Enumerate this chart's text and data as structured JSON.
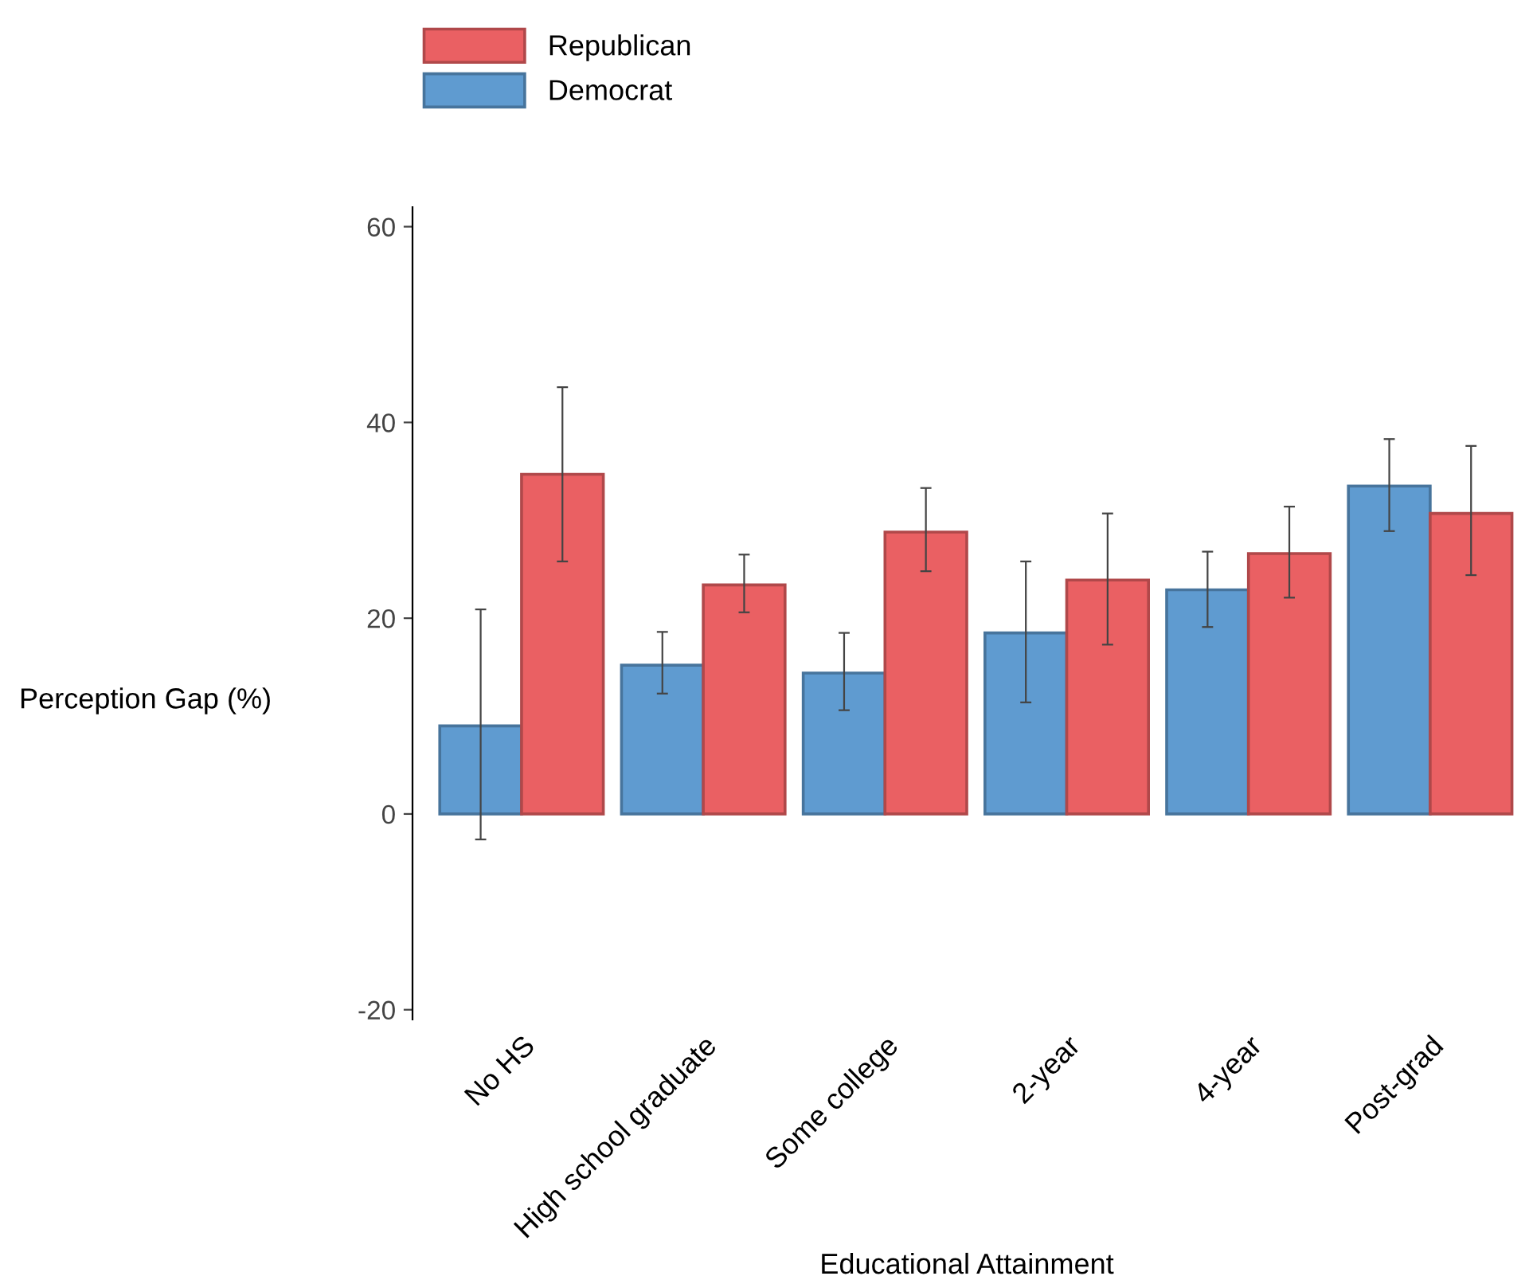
{
  "chart_data": {
    "type": "bar",
    "xlabel": "Educational Attainment",
    "ylabel": "Perception Gap (%)",
    "categories": [
      "No HS",
      "High school graduate",
      "Some college",
      "2-year",
      "4-year",
      "Post-grad"
    ],
    "series": [
      {
        "name": "Democrat",
        "color": "#5f9bd0",
        "values": [
          9.0,
          15.2,
          14.4,
          18.5,
          22.9,
          33.5
        ],
        "errors": [
          [
            -2.6,
            20.9
          ],
          [
            12.3,
            18.6
          ],
          [
            10.6,
            18.5
          ],
          [
            11.4,
            25.8
          ],
          [
            19.1,
            26.8
          ],
          [
            28.9,
            38.3
          ]
        ]
      },
      {
        "name": "Republican",
        "color": "#ea6063",
        "values": [
          34.7,
          23.4,
          28.8,
          23.9,
          26.6,
          30.7
        ],
        "errors": [
          [
            25.8,
            43.6
          ],
          [
            20.6,
            26.5
          ],
          [
            24.8,
            33.3
          ],
          [
            17.3,
            30.7
          ],
          [
            22.1,
            31.4
          ],
          [
            24.4,
            37.6
          ]
        ]
      }
    ],
    "ylim": [
      -21,
      62
    ],
    "yticks": [
      -20,
      0,
      20,
      40,
      60
    ],
    "grid": false,
    "legend": "top left"
  }
}
